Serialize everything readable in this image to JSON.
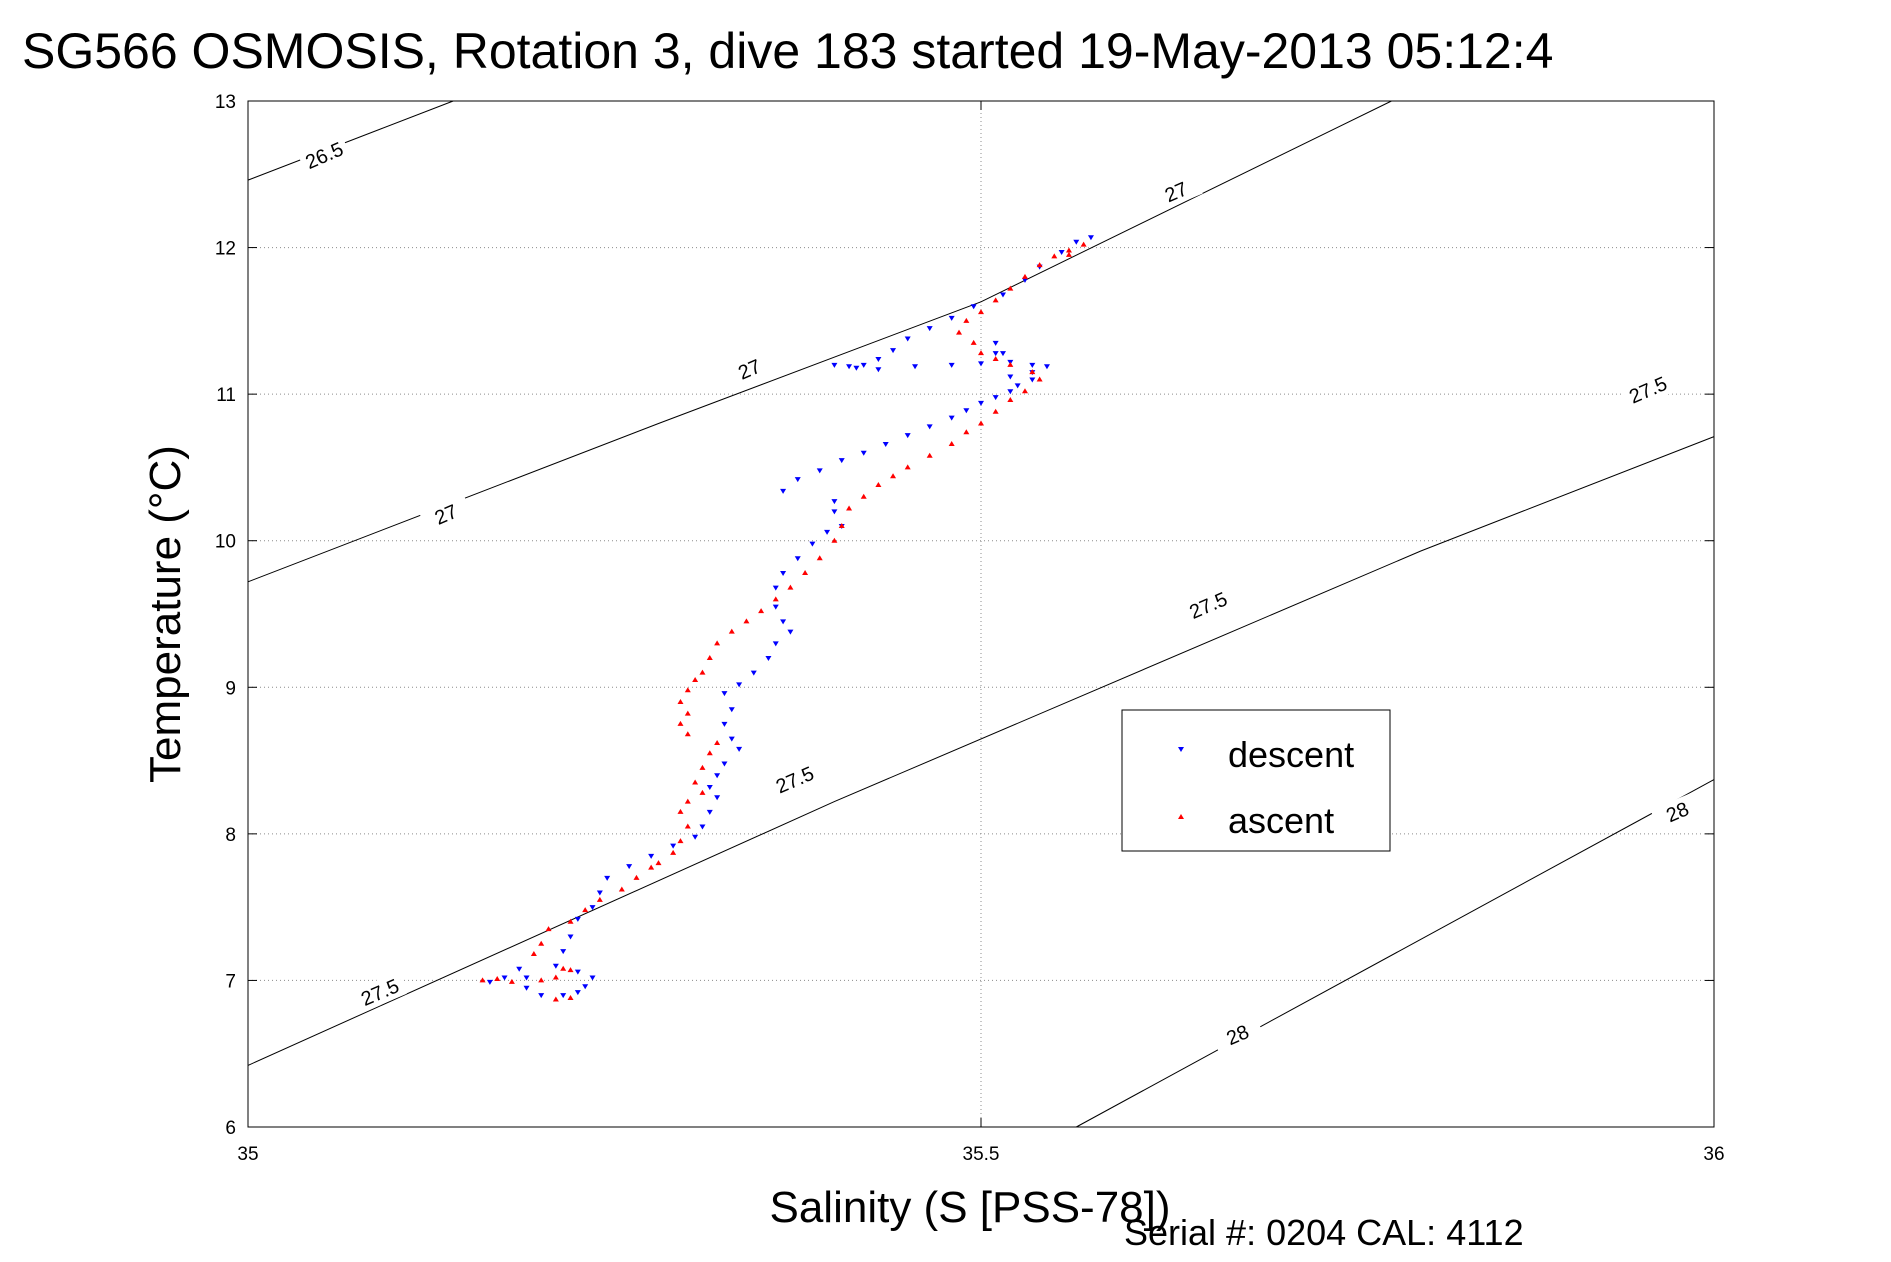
{
  "chart_data": {
    "type": "scatter",
    "title": "SG566 OSMOSIS, Rotation 3, dive 183 started 19-May-2013 05:12:4",
    "xlabel": "Salinity (S [PSS-78])",
    "ylabel": "Temperature (°C)",
    "xlim": [
      35,
      36
    ],
    "ylim": [
      6,
      13
    ],
    "x_ticks": [
      35,
      35.5,
      36
    ],
    "y_ticks": [
      6,
      7,
      8,
      9,
      10,
      11,
      12,
      13
    ],
    "x_tick_labels": [
      "35",
      "35.5",
      "36"
    ],
    "y_tick_labels": [
      "6",
      "7",
      "8",
      "9",
      "10",
      "11",
      "12",
      "13"
    ],
    "grid": true,
    "legend_position": "center-right",
    "density_contours": [
      {
        "label": "26.5",
        "points": [
          [
            35.0,
            12.46
          ],
          [
            35.14,
            13.0
          ]
        ]
      },
      {
        "label": "27",
        "points": [
          [
            35.0,
            9.72
          ],
          [
            35.28,
            10.8
          ],
          [
            35.5,
            11.63
          ],
          [
            35.78,
            13.0
          ]
        ]
      },
      {
        "label": "27.5",
        "points": [
          [
            35.0,
            6.42
          ],
          [
            35.4,
            8.22
          ],
          [
            35.8,
            9.93
          ],
          [
            36.0,
            10.71
          ]
        ]
      },
      {
        "label": "28",
        "points": [
          [
            35.565,
            6.0
          ],
          [
            36.0,
            8.37
          ]
        ]
      }
    ],
    "contour_labels": [
      {
        "text": "26.5",
        "x": 35.052,
        "y": 12.63
      },
      {
        "text": "27",
        "x": 35.135,
        "y": 10.18
      },
      {
        "text": "27",
        "x": 35.342,
        "y": 11.17
      },
      {
        "text": "27",
        "x": 35.633,
        "y": 12.38
      },
      {
        "text": "27.5",
        "x": 35.09,
        "y": 6.92
      },
      {
        "text": "27.5",
        "x": 35.373,
        "y": 8.37
      },
      {
        "text": "27.5",
        "x": 35.655,
        "y": 9.56
      },
      {
        "text": "27.5",
        "x": 35.955,
        "y": 11.03
      },
      {
        "text": "28",
        "x": 35.675,
        "y": 6.63
      },
      {
        "text": "28",
        "x": 35.975,
        "y": 8.15
      }
    ],
    "series": [
      {
        "name": "descent",
        "color": "#0000ff",
        "marker": "triangle-down",
        "points": [
          [
            35.575,
            12.07
          ],
          [
            35.565,
            12.04
          ],
          [
            35.555,
            11.97
          ],
          [
            35.54,
            11.87
          ],
          [
            35.53,
            11.78
          ],
          [
            35.515,
            11.68
          ],
          [
            35.495,
            11.6
          ],
          [
            35.48,
            11.52
          ],
          [
            35.465,
            11.45
          ],
          [
            35.45,
            11.38
          ],
          [
            35.44,
            11.3
          ],
          [
            35.43,
            11.24
          ],
          [
            35.42,
            11.2
          ],
          [
            35.41,
            11.19
          ],
          [
            35.4,
            11.2
          ],
          [
            35.415,
            11.18
          ],
          [
            35.43,
            11.17
          ],
          [
            35.455,
            11.19
          ],
          [
            35.48,
            11.2
          ],
          [
            35.5,
            11.21
          ],
          [
            35.51,
            11.28
          ],
          [
            35.51,
            11.35
          ],
          [
            35.515,
            11.28
          ],
          [
            35.52,
            11.22
          ],
          [
            35.535,
            11.2
          ],
          [
            35.545,
            11.19
          ],
          [
            35.535,
            11.15
          ],
          [
            35.52,
            11.12
          ],
          [
            35.535,
            11.1
          ],
          [
            35.525,
            11.06
          ],
          [
            35.52,
            11.02
          ],
          [
            35.51,
            10.98
          ],
          [
            35.5,
            10.94
          ],
          [
            35.49,
            10.89
          ],
          [
            35.48,
            10.84
          ],
          [
            35.465,
            10.78
          ],
          [
            35.45,
            10.72
          ],
          [
            35.435,
            10.66
          ],
          [
            35.42,
            10.6
          ],
          [
            35.405,
            10.55
          ],
          [
            35.39,
            10.48
          ],
          [
            35.375,
            10.42
          ],
          [
            35.365,
            10.34
          ],
          [
            35.4,
            10.27
          ],
          [
            35.4,
            10.2
          ],
          [
            35.405,
            10.1
          ],
          [
            35.395,
            10.06
          ],
          [
            35.385,
            9.98
          ],
          [
            35.375,
            9.88
          ],
          [
            35.365,
            9.78
          ],
          [
            35.36,
            9.68
          ],
          [
            35.36,
            9.55
          ],
          [
            35.365,
            9.45
          ],
          [
            35.37,
            9.38
          ],
          [
            35.36,
            9.3
          ],
          [
            35.355,
            9.2
          ],
          [
            35.345,
            9.1
          ],
          [
            35.335,
            9.02
          ],
          [
            35.325,
            8.96
          ],
          [
            35.33,
            8.85
          ],
          [
            35.325,
            8.75
          ],
          [
            35.33,
            8.65
          ],
          [
            35.335,
            8.58
          ],
          [
            35.325,
            8.48
          ],
          [
            35.32,
            8.4
          ],
          [
            35.315,
            8.32
          ],
          [
            35.32,
            8.25
          ],
          [
            35.315,
            8.15
          ],
          [
            35.31,
            8.05
          ],
          [
            35.305,
            7.98
          ],
          [
            35.29,
            7.92
          ],
          [
            35.275,
            7.85
          ],
          [
            35.26,
            7.78
          ],
          [
            35.245,
            7.7
          ],
          [
            35.24,
            7.6
          ],
          [
            35.235,
            7.5
          ],
          [
            35.225,
            7.42
          ],
          [
            35.22,
            7.3
          ],
          [
            35.215,
            7.2
          ],
          [
            35.21,
            7.1
          ],
          [
            35.225,
            7.06
          ],
          [
            35.235,
            7.02
          ],
          [
            35.23,
            6.96
          ],
          [
            35.225,
            6.92
          ],
          [
            35.215,
            6.9
          ],
          [
            35.2,
            6.9
          ],
          [
            35.19,
            6.95
          ],
          [
            35.19,
            7.02
          ],
          [
            35.185,
            7.08
          ],
          [
            35.175,
            7.02
          ],
          [
            35.165,
            6.99
          ]
        ]
      },
      {
        "name": "ascent",
        "color": "#ff0000",
        "marker": "triangle-up",
        "points": [
          [
            35.16,
            7.0
          ],
          [
            35.17,
            7.01
          ],
          [
            35.18,
            6.99
          ],
          [
            35.2,
            7.0
          ],
          [
            35.21,
            7.02
          ],
          [
            35.215,
            7.08
          ],
          [
            35.22,
            7.07
          ],
          [
            35.22,
            6.88
          ],
          [
            35.21,
            6.87
          ],
          [
            35.195,
            7.18
          ],
          [
            35.2,
            7.25
          ],
          [
            35.205,
            7.35
          ],
          [
            35.22,
            7.4
          ],
          [
            35.23,
            7.48
          ],
          [
            35.24,
            7.55
          ],
          [
            35.255,
            7.62
          ],
          [
            35.265,
            7.7
          ],
          [
            35.275,
            7.77
          ],
          [
            35.28,
            7.8
          ],
          [
            35.29,
            7.87
          ],
          [
            35.295,
            7.95
          ],
          [
            35.3,
            8.05
          ],
          [
            35.295,
            8.15
          ],
          [
            35.3,
            8.22
          ],
          [
            35.31,
            8.28
          ],
          [
            35.305,
            8.35
          ],
          [
            35.31,
            8.45
          ],
          [
            35.315,
            8.55
          ],
          [
            35.32,
            8.62
          ],
          [
            35.3,
            8.68
          ],
          [
            35.295,
            8.75
          ],
          [
            35.3,
            8.82
          ],
          [
            35.295,
            8.9
          ],
          [
            35.3,
            8.98
          ],
          [
            35.305,
            9.05
          ],
          [
            35.31,
            9.1
          ],
          [
            35.315,
            9.2
          ],
          [
            35.32,
            9.3
          ],
          [
            35.33,
            9.38
          ],
          [
            35.34,
            9.45
          ],
          [
            35.35,
            9.52
          ],
          [
            35.36,
            9.6
          ],
          [
            35.37,
            9.68
          ],
          [
            35.38,
            9.78
          ],
          [
            35.39,
            9.88
          ],
          [
            35.4,
            10.0
          ],
          [
            35.405,
            10.1
          ],
          [
            35.41,
            10.22
          ],
          [
            35.42,
            10.3
          ],
          [
            35.43,
            10.38
          ],
          [
            35.44,
            10.44
          ],
          [
            35.45,
            10.5
          ],
          [
            35.465,
            10.58
          ],
          [
            35.48,
            10.66
          ],
          [
            35.49,
            10.74
          ],
          [
            35.5,
            10.8
          ],
          [
            35.51,
            10.88
          ],
          [
            35.52,
            10.96
          ],
          [
            35.53,
            11.02
          ],
          [
            35.54,
            11.1
          ],
          [
            35.535,
            11.15
          ],
          [
            35.52,
            11.2
          ],
          [
            35.51,
            11.24
          ],
          [
            35.5,
            11.28
          ],
          [
            35.495,
            11.35
          ],
          [
            35.485,
            11.42
          ],
          [
            35.49,
            11.5
          ],
          [
            35.5,
            11.56
          ],
          [
            35.51,
            11.64
          ],
          [
            35.52,
            11.72
          ],
          [
            35.53,
            11.8
          ],
          [
            35.54,
            11.88
          ],
          [
            35.55,
            11.94
          ],
          [
            35.56,
            11.98
          ],
          [
            35.57,
            12.02
          ],
          [
            35.56,
            11.95
          ]
        ]
      }
    ]
  },
  "footer": {
    "serial_text": "Serial #: 0204  CAL: 4112"
  }
}
